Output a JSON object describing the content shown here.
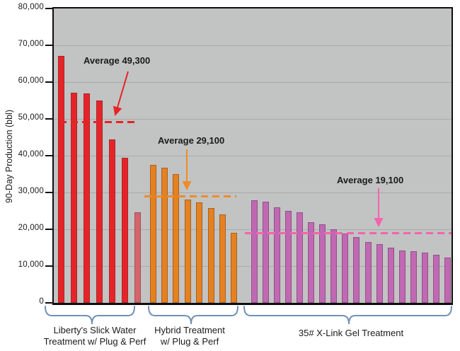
{
  "chart_data": {
    "type": "bar",
    "title": "",
    "ylabel": "90-Day Production (bbl)",
    "ylim": [
      0,
      80000
    ],
    "ytick_labels": [
      "0",
      "10,000",
      "20,000",
      "30,000",
      "40,000",
      "50,000",
      "60,000",
      "70,000",
      "80,000"
    ],
    "grid": true,
    "legend": "none",
    "groups": [
      {
        "name": "Liberty's Slick Water Treatment w/ Plug & Perf",
        "label_lines": [
          "Liberty's Slick Water",
          "Treatment w/ Plug & Perf"
        ],
        "bar_color": "#e62428",
        "last_bar_color": "#d5656b",
        "average": 49300,
        "average_label": "Average 49,300",
        "average_line_color": "#e62428",
        "values": [
          67200,
          57200,
          56900,
          55000,
          44400,
          39500,
          24600
        ]
      },
      {
        "name": "Hybrid Treatment w/ Plug & Perf",
        "label_lines": [
          "Hybrid Treatment",
          "w/ Plug & Perf"
        ],
        "bar_color": "#e5811f",
        "average": 29100,
        "average_label": "Average 29,100",
        "average_line_color": "#ef8c28",
        "values": [
          37500,
          36800,
          35000,
          28000,
          27300,
          25700,
          24100,
          19000
        ]
      },
      {
        "name": "35# X-Link Gel Treatment",
        "label_lines": [
          "35# X-Link Gel Treatment"
        ],
        "bar_color": "#c168b4",
        "average": 19100,
        "average_label": "Average 19,100",
        "average_line_color": "#f563ae",
        "values": [
          27900,
          27500,
          26000,
          25000,
          24600,
          22000,
          21300,
          20000,
          18800,
          17900,
          16500,
          16000,
          15000,
          14200,
          14000,
          13700,
          13100,
          12300
        ]
      }
    ],
    "colors": {
      "plot_background": "#c2c3c3",
      "gridline": "#a9aaab",
      "axis": "#0e0e0e",
      "brace": "#7191b7",
      "text": "#1a1a1a"
    }
  }
}
